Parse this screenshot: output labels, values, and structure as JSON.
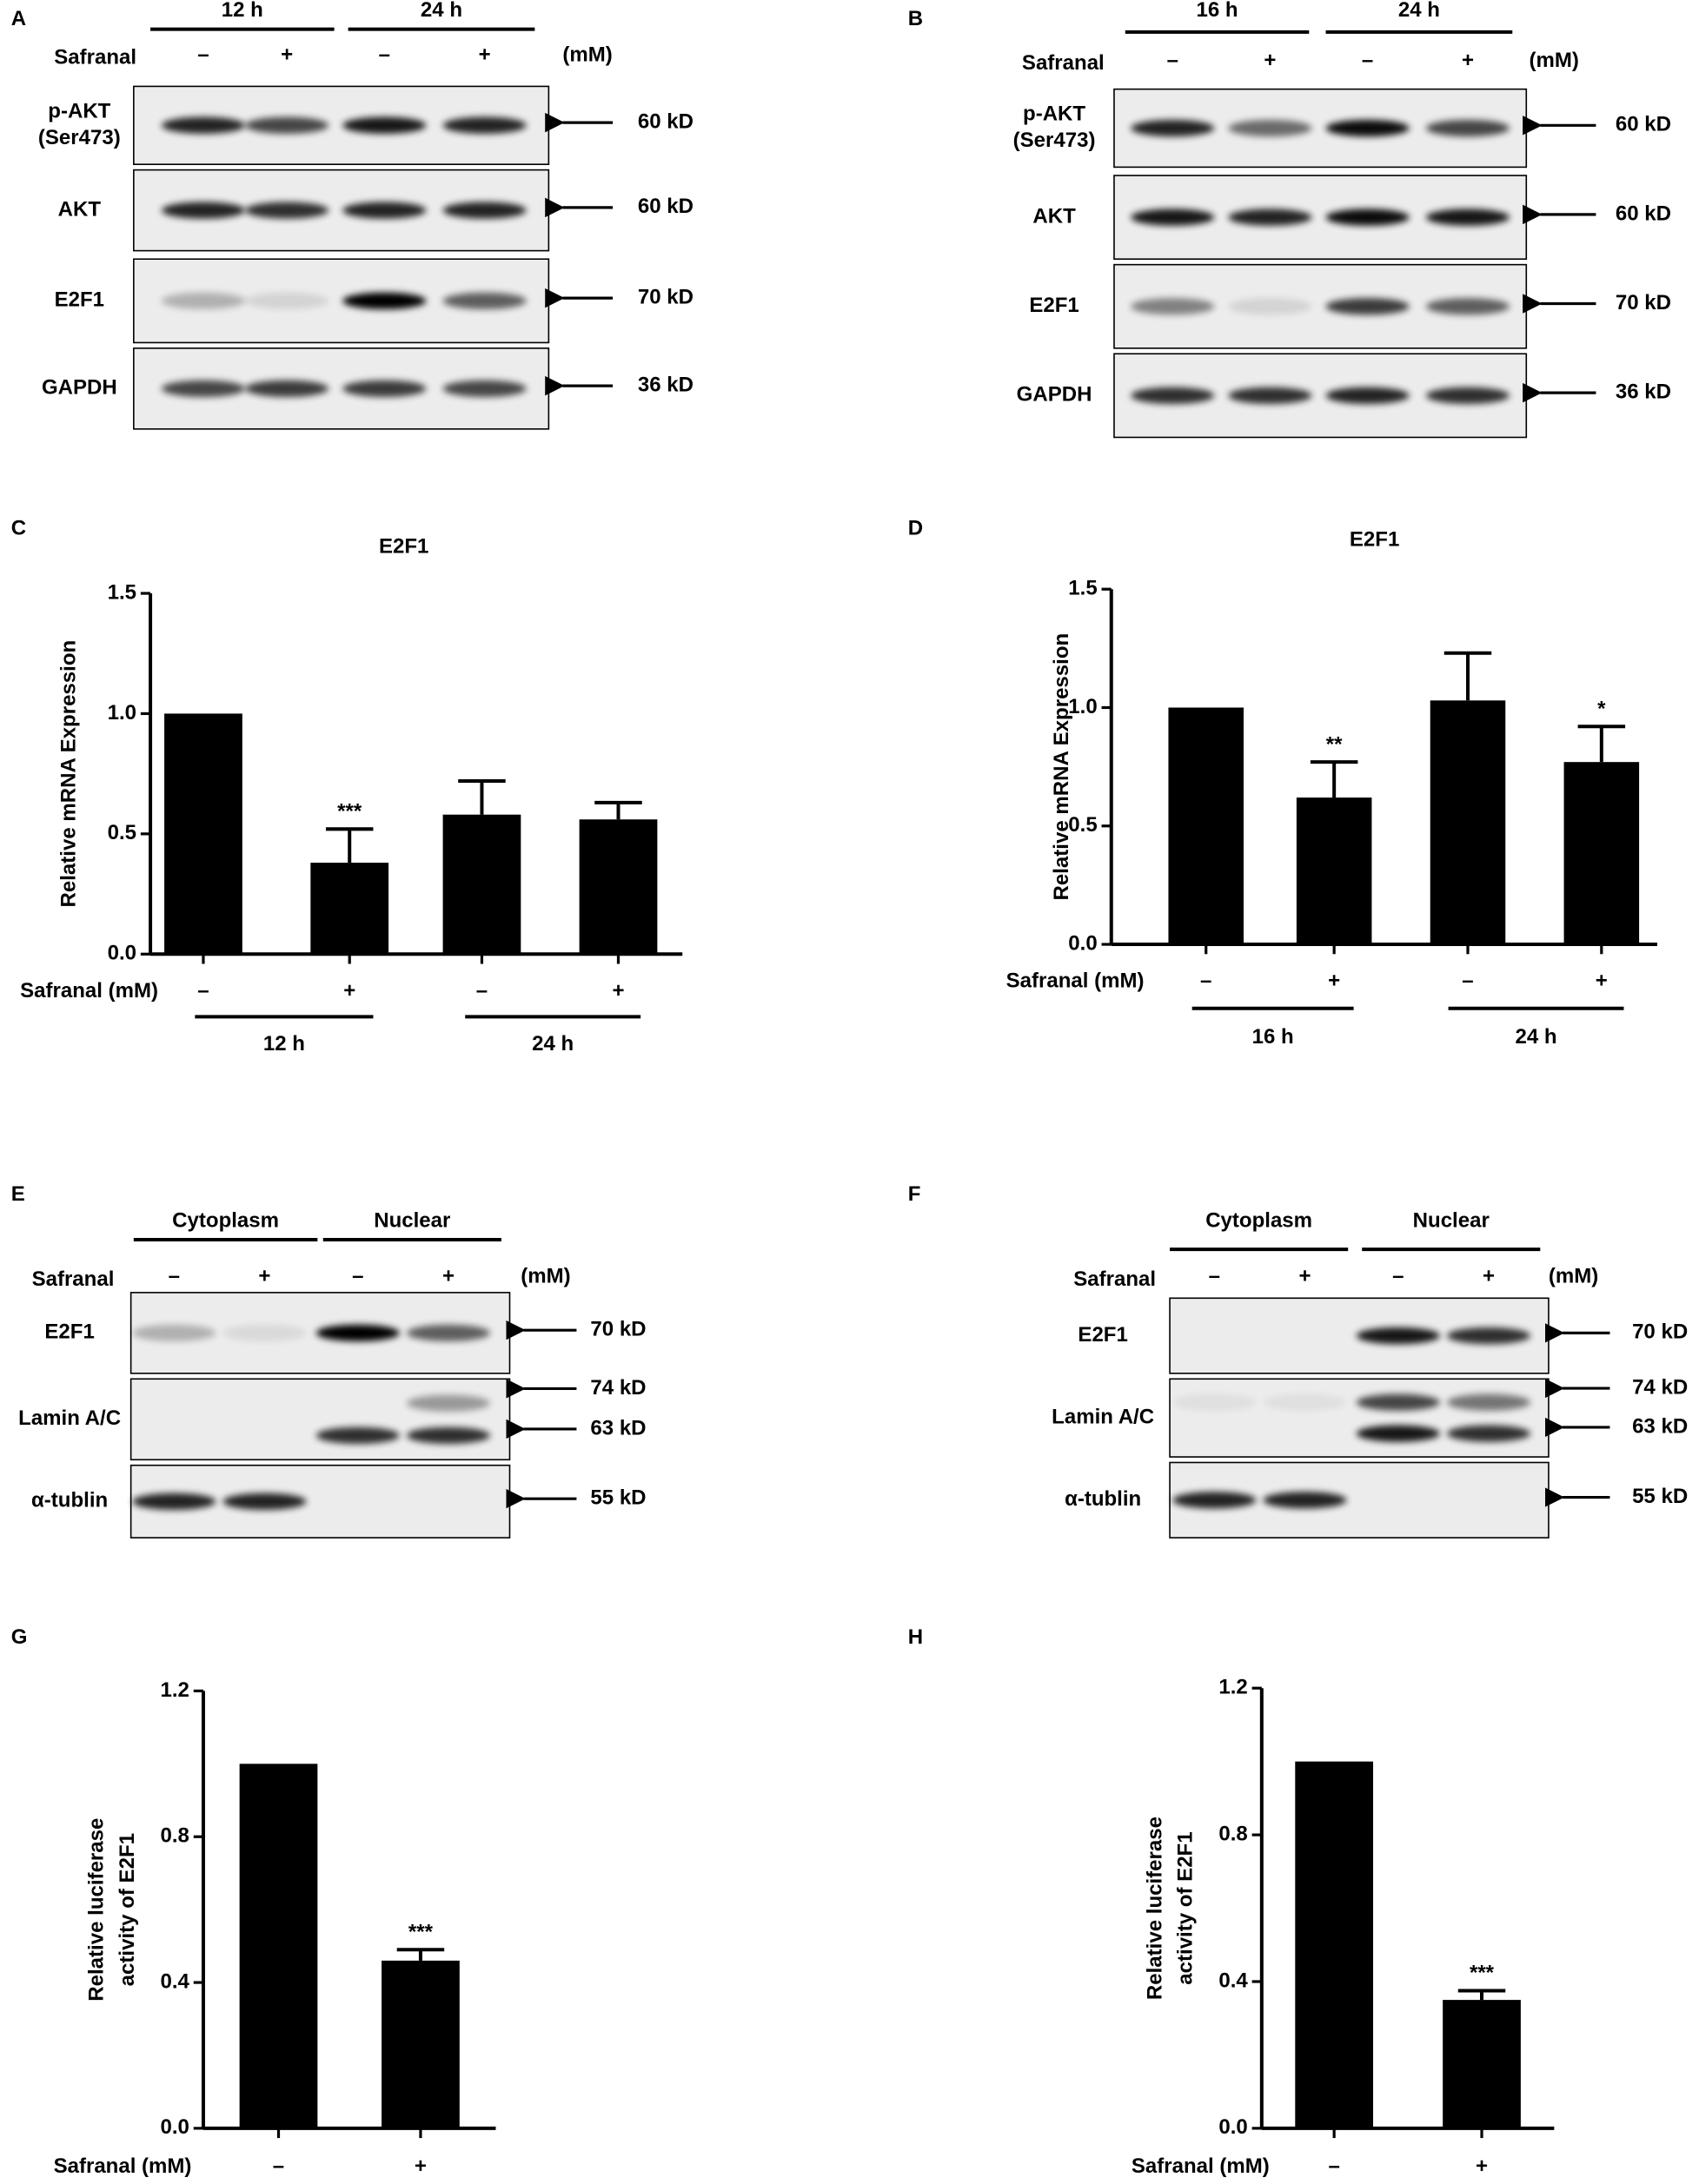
{
  "blots": [
    {
      "panel": "A",
      "groups": [
        "12 h",
        "24 h"
      ],
      "treatment": "Safranal",
      "unit": "(mM)",
      "lanes": [
        "–",
        "+",
        "–",
        "+"
      ],
      "rows": [
        {
          "label_lines": [
            "p-AKT",
            "(Ser473)"
          ],
          "sizes": [
            "60 kD"
          ]
        },
        {
          "label_lines": [
            "AKT"
          ],
          "sizes": [
            "60 kD"
          ]
        },
        {
          "label_lines": [
            "E2F1"
          ],
          "sizes": [
            "70 kD"
          ]
        },
        {
          "label_lines": [
            "GAPDH"
          ],
          "sizes": [
            "36 kD"
          ]
        }
      ]
    },
    {
      "panel": "B",
      "groups": [
        "16 h",
        "24 h"
      ],
      "treatment": "Safranal",
      "unit": "(mM)",
      "lanes": [
        "–",
        "+",
        "–",
        "+"
      ],
      "rows": [
        {
          "label_lines": [
            "p-AKT",
            "(Ser473)"
          ],
          "sizes": [
            "60 kD"
          ]
        },
        {
          "label_lines": [
            "AKT"
          ],
          "sizes": [
            "60 kD"
          ]
        },
        {
          "label_lines": [
            "E2F1"
          ],
          "sizes": [
            "70 kD"
          ]
        },
        {
          "label_lines": [
            "GAPDH"
          ],
          "sizes": [
            "36 kD"
          ]
        }
      ]
    },
    {
      "panel": "E",
      "groups": [
        "Cytoplasm",
        "Nuclear"
      ],
      "treatment": "Safranal",
      "unit": "(mM)",
      "lanes": [
        "–",
        "+",
        "–",
        "+"
      ],
      "rows": [
        {
          "label_lines": [
            "E2F1"
          ],
          "sizes": [
            "70 kD"
          ]
        },
        {
          "label_lines": [
            "Lamin A/C"
          ],
          "sizes": [
            "74 kD",
            "63 kD"
          ]
        },
        {
          "label_lines": [
            "α-tublin"
          ],
          "sizes": [
            "55 kD"
          ]
        }
      ]
    },
    {
      "panel": "F",
      "groups": [
        "Cytoplasm",
        "Nuclear"
      ],
      "treatment": "Safranal",
      "unit": "(mM)",
      "lanes": [
        "–",
        "+",
        "–",
        "+"
      ],
      "rows": [
        {
          "label_lines": [
            "E2F1"
          ],
          "sizes": [
            "70 kD"
          ]
        },
        {
          "label_lines": [
            "Lamin A/C"
          ],
          "sizes": [
            "74 kD",
            "63 kD"
          ]
        },
        {
          "label_lines": [
            "α-tublin"
          ],
          "sizes": [
            "55 kD"
          ]
        }
      ]
    }
  ],
  "chart_data": [
    {
      "panel": "C",
      "type": "bar",
      "title": "E2F1",
      "y_label_lines": [
        "Relative mRNA Expression"
      ],
      "x_label": "Safranal (mM)",
      "categories": [
        "–",
        "+",
        "–",
        "+"
      ],
      "groups": [
        "12 h",
        "24 h"
      ],
      "values": [
        1.0,
        0.38,
        0.58,
        0.56
      ],
      "errors": [
        null,
        0.14,
        0.14,
        0.07
      ],
      "value_annotations": [
        null,
        "***",
        null,
        null
      ],
      "color": "#000000",
      "ylim": [
        0,
        1.5
      ],
      "yticks": [
        {
          "value": 0,
          "label": "0.0"
        },
        0.5,
        {
          "value": 1,
          "label": "1.0"
        },
        1.5
      ]
    },
    {
      "panel": "D",
      "type": "bar",
      "title": "E2F1",
      "y_label_lines": [
        "Relative mRNA Expression"
      ],
      "x_label": "Safranal (mM)",
      "categories": [
        "–",
        "+",
        "–",
        "+"
      ],
      "groups": [
        "16 h",
        "24 h"
      ],
      "values": [
        1.0,
        0.62,
        1.03,
        0.77
      ],
      "errors": [
        null,
        0.15,
        0.2,
        0.15
      ],
      "value_annotations": [
        null,
        "**",
        null,
        "*"
      ],
      "color": "#000000",
      "ylim": [
        0,
        1.5
      ],
      "yticks": [
        {
          "value": 0,
          "label": "0.0"
        },
        0.5,
        {
          "value": 1,
          "label": "1.0"
        },
        1.5
      ]
    },
    {
      "panel": "G",
      "type": "bar",
      "y_label_lines": [
        "Relative luciferase",
        "activity of E2F1"
      ],
      "x_label": "Safranal (mM)",
      "categories": [
        "–",
        "+"
      ],
      "values": [
        1.0,
        0.46
      ],
      "errors": [
        null,
        0.03
      ],
      "value_annotations": [
        null,
        "***"
      ],
      "color": "#000000",
      "ylim": [
        0,
        1.2
      ],
      "yticks": [
        {
          "value": 0,
          "label": "0.0"
        },
        0.4,
        0.8,
        1.2
      ]
    },
    {
      "panel": "H",
      "type": "bar",
      "y_label_lines": [
        "Relative luciferase",
        "activity of E2F1"
      ],
      "x_label": "Safranal (mM)",
      "categories": [
        "–",
        "+"
      ],
      "values": [
        1.0,
        0.35
      ],
      "errors": [
        null,
        0.025
      ],
      "value_annotations": [
        null,
        "***"
      ],
      "color": "#000000",
      "ylim": [
        0,
        1.2
      ],
      "yticks": [
        {
          "value": 0,
          "label": "0.0"
        },
        0.4,
        0.8,
        1.2
      ]
    }
  ]
}
